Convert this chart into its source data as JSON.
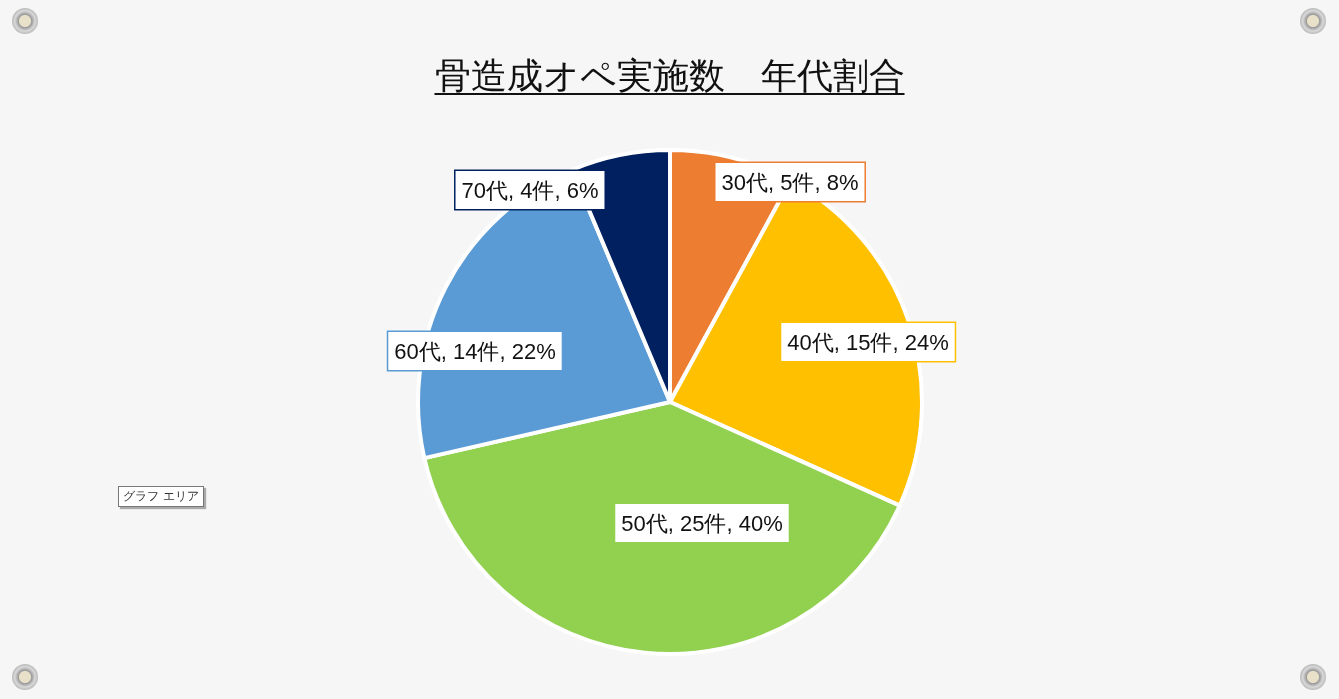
{
  "chart_data": {
    "type": "pie",
    "title": "骨造成オペ実施数　年代割合",
    "categories": [
      "30代",
      "40代",
      "50代",
      "60代",
      "70代"
    ],
    "values": [
      5,
      15,
      25,
      14,
      4
    ],
    "colors": [
      "#ed7d31",
      "#ffc000",
      "#92d050",
      "#5b9bd5",
      "#002060"
    ],
    "value_labels": [
      "5件, 8%",
      "15件, 24%",
      "25件, 40%",
      "14件, 22%",
      "4件, 6%"
    ],
    "annotations": [
      "グラフ エリア"
    ],
    "legend": false
  }
}
